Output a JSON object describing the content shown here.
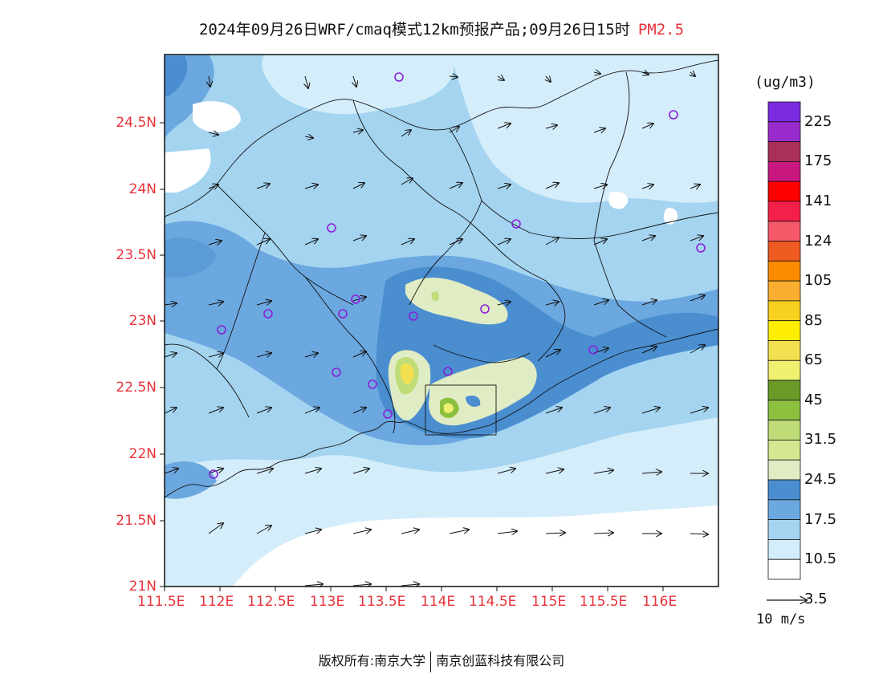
{
  "header": {
    "title": "2024年09月26日WRF/cmaq模式12km预报产品;09月26日15时",
    "pollutant": "PM2.5"
  },
  "map": {
    "lat_labels": [
      "24.5N",
      "24N",
      "23.5N",
      "23N",
      "22.5N",
      "22N",
      "21.5N",
      "21N"
    ],
    "lon_labels": [
      "111.5E",
      "112E",
      "112.5E",
      "113E",
      "113.5E",
      "114E",
      "114.5E",
      "115E",
      "115.5E",
      "116E"
    ]
  },
  "legend": {
    "unit": "(ug/m3)",
    "labels": [
      "225",
      "175",
      "141",
      "124",
      "105",
      "85",
      "65",
      "45",
      "31.5",
      "24.5",
      "17.5",
      "10.5",
      "3.5"
    ],
    "colors_top_to_bottom": [
      "#7b2be0",
      "#9a2ccd",
      "#a8305a",
      "#c81880",
      "#ff0000",
      "#f5204a",
      "#f55868",
      "#ef5a20",
      "#fb8c00",
      "#f9ae30",
      "#f8d020",
      "#ffee00",
      "#f2e050",
      "#f0f070",
      "#6a9a28",
      "#8ec040",
      "#bfdc78",
      "#d4e892",
      "#e0ecc4",
      "#4a8ed0",
      "#6ba8e0",
      "#a4d4f0",
      "#d4edfa",
      "#ffffff"
    ],
    "wind_ref": "10 m/s"
  },
  "footer": {
    "copyright": "版权所有:南京大学",
    "company": "南京创蓝科技有限公司"
  }
}
